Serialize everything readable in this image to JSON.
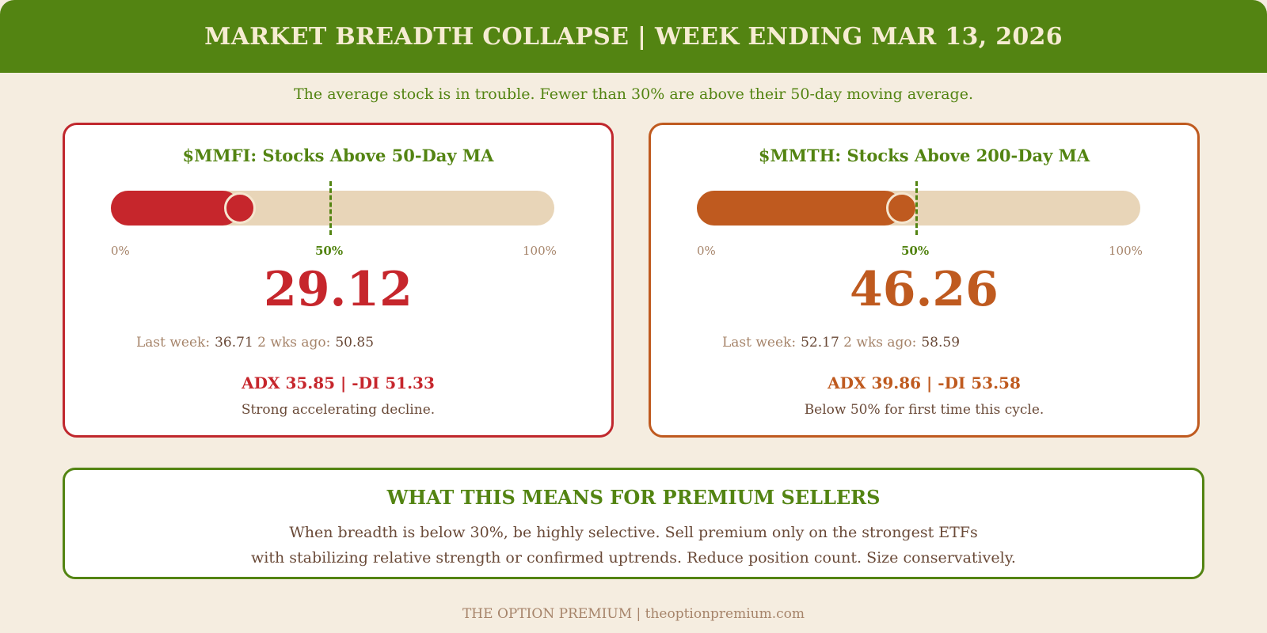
{
  "header": {
    "title": "MARKET BREADTH COLLAPSE | WEEK ENDING MAR 13, 2026"
  },
  "subtitle": "The average stock is in trouble. Fewer than 30% are above their 50-day moving average.",
  "scale": {
    "min_label": "0%",
    "mid_label": "50%",
    "max_label": "100%"
  },
  "colors": {
    "header": "#538412",
    "mmfi": "#c6262c",
    "mmth": "#bf5a1f",
    "track": "#e8d5b8",
    "background": "#f5ede0"
  },
  "cards": [
    {
      "title": "$MMFI: Stocks Above 50-Day MA",
      "value_percent": 29.12,
      "value_text": "29.12",
      "last_week_label": "Last week:",
      "last_week_value": "36.71",
      "two_weeks_label": "2 wks ago:",
      "two_weeks_value": "50.85",
      "adx": "ADX 35.85 | -DI 51.33",
      "note": "Strong accelerating decline."
    },
    {
      "title": "$MMTH: Stocks Above 200-Day MA",
      "value_percent": 46.26,
      "value_text": "46.26",
      "last_week_label": "Last week:",
      "last_week_value": "52.17",
      "two_weeks_label": "2 wks ago:",
      "two_weeks_value": "58.59",
      "adx": "ADX 39.86 | -DI 53.58",
      "note": "Below 50% for first time this cycle."
    }
  ],
  "info": {
    "title": "WHAT THIS MEANS FOR PREMIUM SELLERS",
    "line1": "When breadth is below 30%, be highly selective. Sell premium only on the strongest ETFs",
    "line2": "with stabilizing relative strength or confirmed uptrends. Reduce position count. Size conservatively."
  },
  "footer": "THE OPTION PREMIUM | theoptionpremium.com"
}
